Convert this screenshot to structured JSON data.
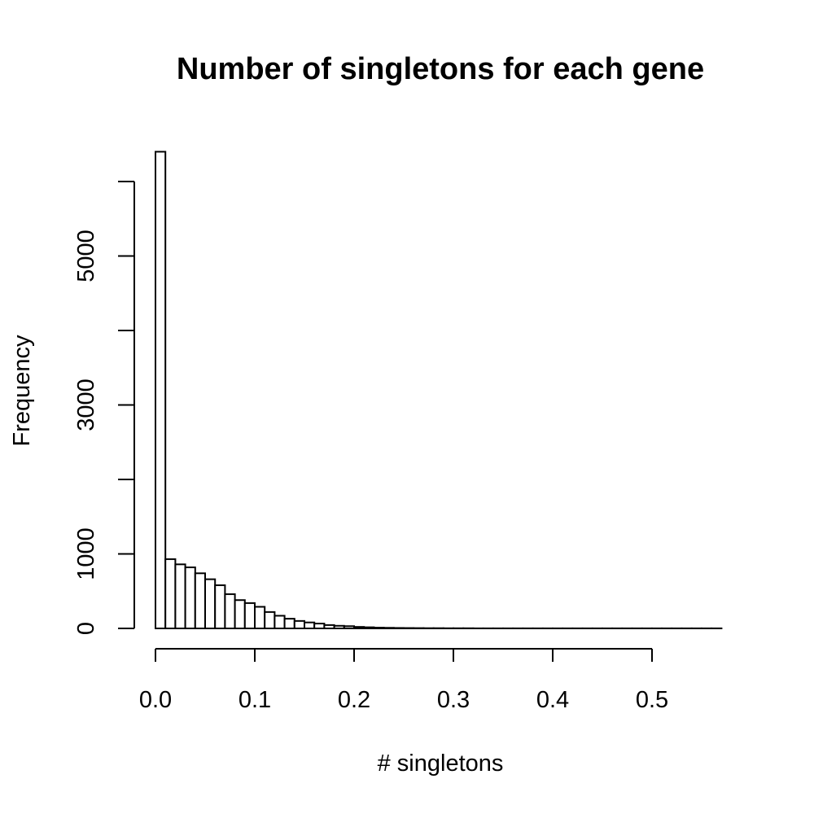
{
  "chart_data": {
    "type": "bar",
    "title": "Number of singletons for each gene",
    "xlabel": "# singletons",
    "ylabel": "Frequency",
    "xlim": [
      0,
      0.57
    ],
    "ylim": [
      0,
      6000
    ],
    "x_ticks": [
      0.0,
      0.1,
      0.2,
      0.3,
      0.4,
      0.5
    ],
    "x_tick_labels": [
      "0.0",
      "0.1",
      "0.2",
      "0.3",
      "0.4",
      "0.5"
    ],
    "y_ticks": [
      0,
      1000,
      2000,
      3000,
      4000,
      5000,
      6000
    ],
    "y_tick_labels": [
      "0",
      "1000",
      "",
      "3000",
      "",
      "5000",
      ""
    ],
    "bin_width": 0.01,
    "bin_start": 0.0,
    "values": [
      6400,
      930,
      860,
      820,
      740,
      660,
      580,
      460,
      380,
      340,
      290,
      220,
      170,
      130,
      100,
      80,
      65,
      45,
      35,
      30,
      20,
      15,
      10,
      8,
      6,
      5,
      4,
      3,
      3,
      2,
      2,
      2,
      1,
      1,
      1,
      1,
      1,
      1,
      1,
      1,
      1,
      1,
      1,
      1,
      1,
      1,
      1,
      1,
      1,
      1,
      1,
      1,
      1,
      1,
      1,
      1,
      1
    ],
    "grid": false,
    "legend": "none"
  }
}
